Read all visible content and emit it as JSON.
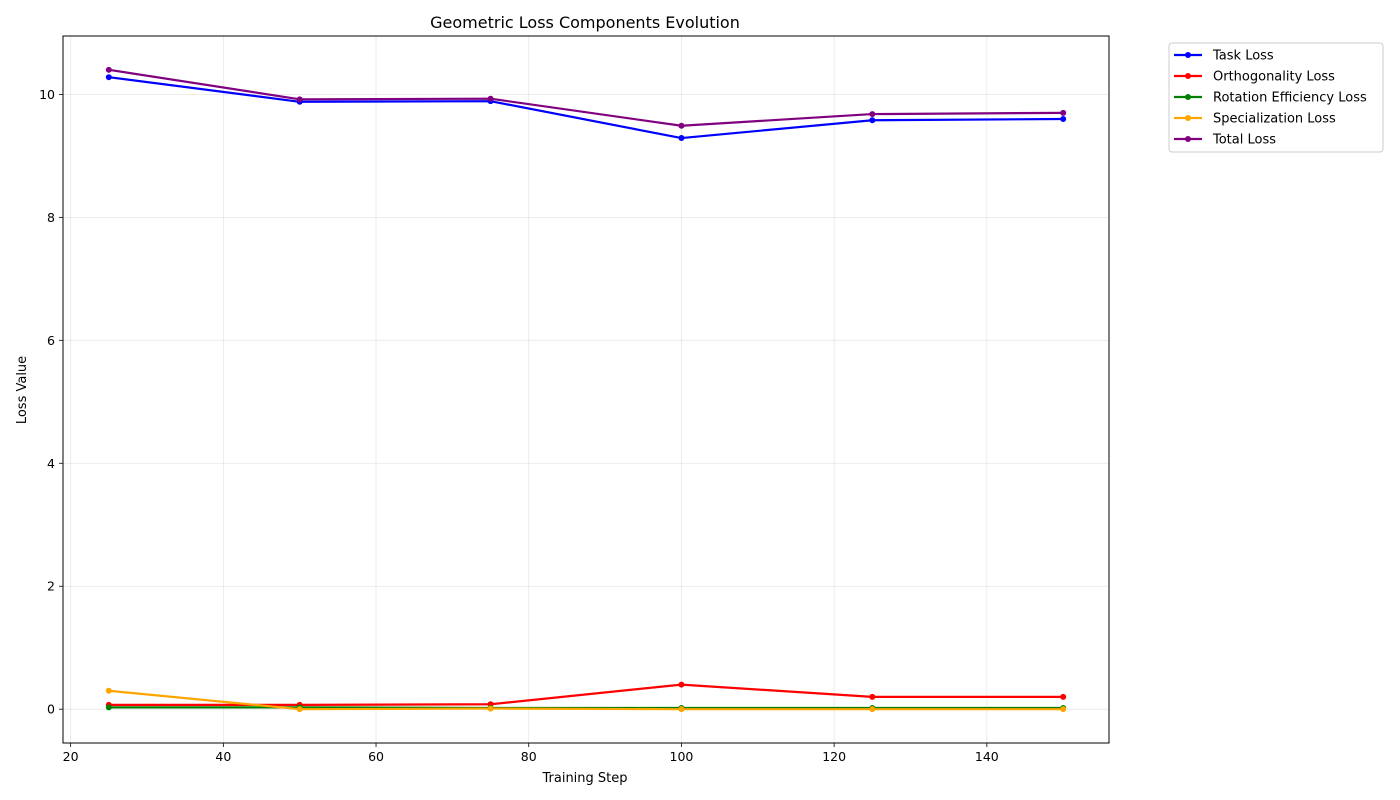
{
  "chart_data": {
    "type": "line",
    "title": "Geometric Loss Components Evolution",
    "xlabel": "Training Step",
    "ylabel": "Loss Value",
    "x": [
      25,
      50,
      75,
      100,
      125,
      150
    ],
    "xlim": [
      19,
      156
    ],
    "ylim": [
      -0.55,
      10.95
    ],
    "xticks": [
      20,
      40,
      60,
      80,
      100,
      120,
      140
    ],
    "yticks": [
      0,
      2,
      4,
      6,
      8,
      10
    ],
    "grid": true,
    "legend_position": "outside-top-right",
    "series": [
      {
        "name": "Task Loss",
        "color": "#0000ff",
        "values": [
          10.28,
          9.88,
          9.89,
          9.29,
          9.58,
          9.6
        ]
      },
      {
        "name": "Orthogonality Loss",
        "color": "#ff0000",
        "values": [
          0.07,
          0.07,
          0.08,
          0.4,
          0.2,
          0.2
        ]
      },
      {
        "name": "Rotation Efficiency Loss",
        "color": "#008000",
        "values": [
          0.03,
          0.03,
          0.02,
          0.02,
          0.02,
          0.02
        ]
      },
      {
        "name": "Specialization Loss",
        "color": "#ffa500",
        "values": [
          0.3,
          0.0,
          0.01,
          0.0,
          0.0,
          0.0
        ]
      },
      {
        "name": "Total Loss",
        "color": "#800080",
        "values": [
          10.4,
          9.92,
          9.93,
          9.49,
          9.68,
          9.7
        ]
      }
    ]
  }
}
